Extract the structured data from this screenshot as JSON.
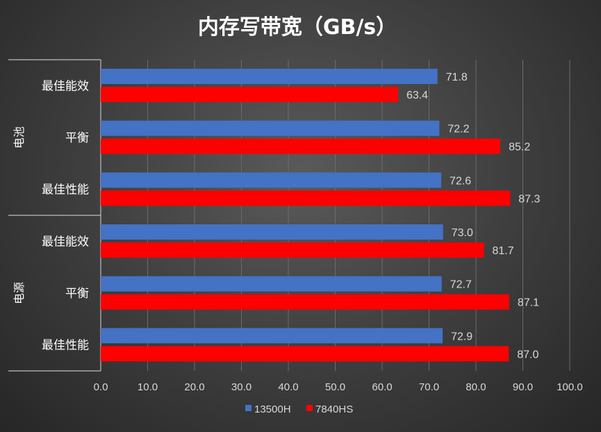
{
  "chart_data": {
    "type": "bar",
    "orientation": "horizontal",
    "title": "内存写带宽（GB/s）",
    "groups": [
      {
        "label": "电池",
        "categories": [
          "最佳能效",
          "平衡",
          "最佳性能"
        ]
      },
      {
        "label": "电源",
        "categories": [
          "最佳能效",
          "平衡",
          "最佳性能"
        ]
      }
    ],
    "categories": [
      "电池-最佳能效",
      "电池-平衡",
      "电池-最佳性能",
      "电源-最佳能效",
      "电源-平衡",
      "电源-最佳性能"
    ],
    "series": [
      {
        "name": "13500H",
        "color": "#4472c4",
        "values": [
          71.8,
          72.2,
          72.6,
          73.0,
          72.7,
          72.9
        ],
        "labels": [
          "71.8",
          "72.2",
          "72.6",
          "73.0",
          "72.7",
          "72.9"
        ]
      },
      {
        "name": "7840HS",
        "color": "#ff0000",
        "values": [
          63.4,
          85.2,
          87.3,
          81.7,
          87.1,
          87.0
        ],
        "labels": [
          "63.4",
          "85.2",
          "87.3",
          "81.7",
          "87.1",
          "87.0"
        ]
      }
    ],
    "xlim": [
      0,
      100
    ],
    "xticks": [
      "0.0",
      "10.0",
      "20.0",
      "30.0",
      "40.0",
      "50.0",
      "60.0",
      "70.0",
      "80.0",
      "90.0",
      "100.0"
    ],
    "grid": true,
    "legend_position": "bottom"
  }
}
